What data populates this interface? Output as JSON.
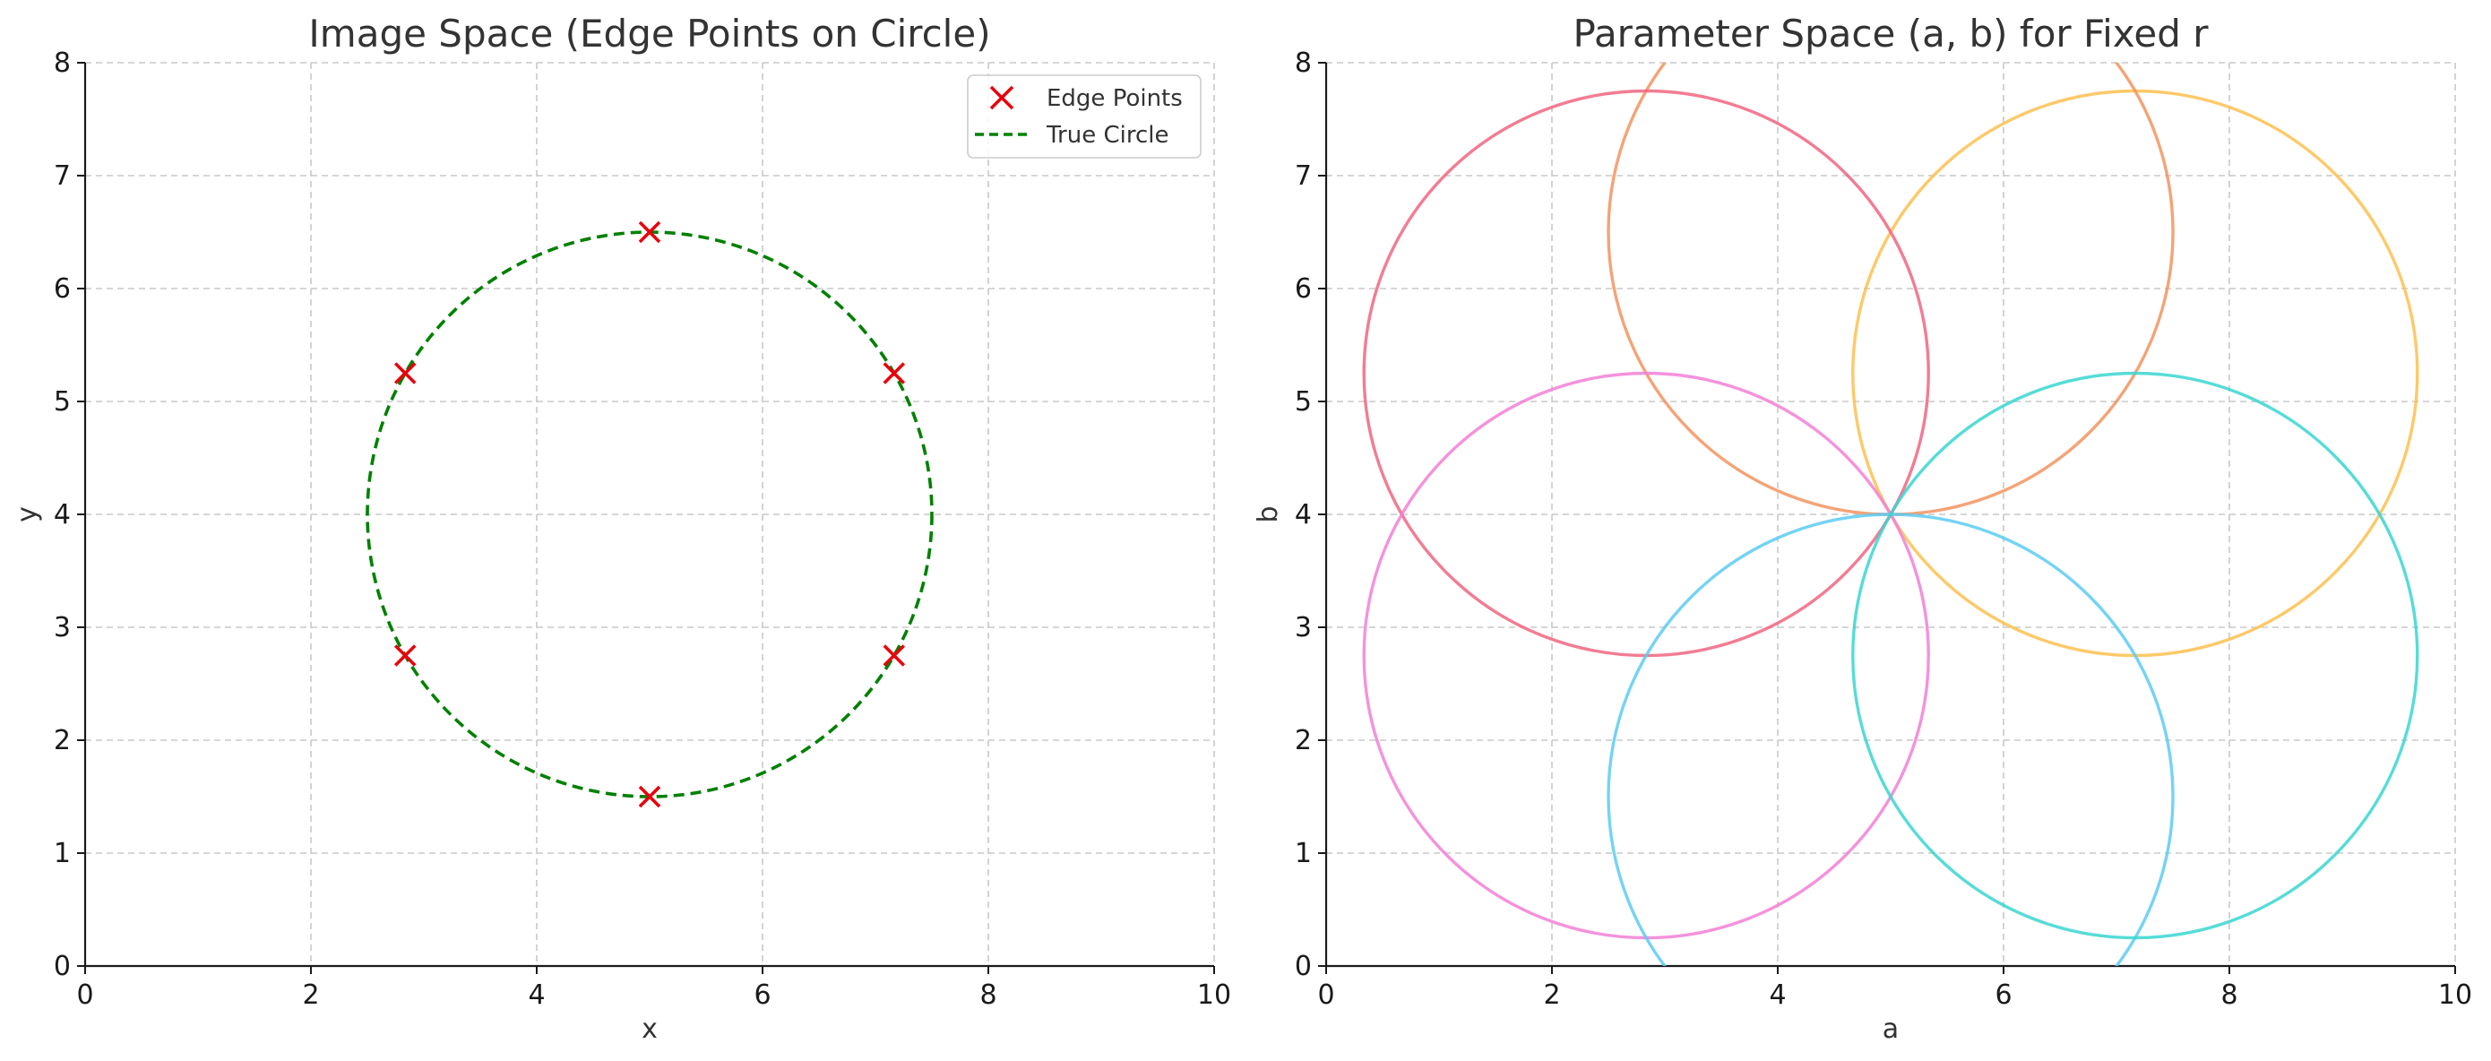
{
  "chart_data": [
    {
      "type": "scatter",
      "title": "Image Space (Edge Points on Circle)",
      "xlabel": "x",
      "ylabel": "y",
      "xlim": [
        0,
        10
      ],
      "ylim": [
        0,
        8
      ],
      "xticks": [
        "0",
        "2",
        "4",
        "6",
        "8",
        "10"
      ],
      "yticks": [
        "0",
        "1",
        "2",
        "3",
        "4",
        "5",
        "6",
        "7",
        "8"
      ],
      "grid": true,
      "legend_position": "top-right",
      "legend": [
        {
          "label": "Edge Points",
          "style": "x-marker",
          "color": "#e8000b"
        },
        {
          "label": "True Circle",
          "style": "dashed-line",
          "color": "#008000"
        }
      ],
      "points": {
        "name": "Edge Points",
        "color": "#e8000b",
        "x": [
          7.165,
          5.0,
          2.835,
          2.835,
          5.0,
          7.165
        ],
        "y": [
          5.25,
          6.5,
          5.25,
          2.75,
          1.5,
          2.75
        ]
      },
      "circle": {
        "name": "True Circle",
        "center": [
          5,
          4
        ],
        "radius": 2.5,
        "color": "#008000"
      }
    },
    {
      "type": "line",
      "title": "Parameter Space (a, b) for Fixed r",
      "xlabel": "a",
      "ylabel": "b",
      "xlim": [
        0,
        10
      ],
      "ylim": [
        0,
        8
      ],
      "xticks": [
        "0",
        "2",
        "4",
        "6",
        "8",
        "10"
      ],
      "yticks": [
        "0",
        "1",
        "2",
        "3",
        "4",
        "5",
        "6",
        "7",
        "8"
      ],
      "grid": true,
      "radius": 2.5,
      "circles": [
        {
          "center": [
            7.165,
            5.25
          ],
          "color": "#fdbf4f"
        },
        {
          "center": [
            5.0,
            6.5
          ],
          "color": "#f2935f"
        },
        {
          "center": [
            2.835,
            5.25
          ],
          "color": "#f06580"
        },
        {
          "center": [
            2.835,
            2.75
          ],
          "color": "#f27fd6"
        },
        {
          "center": [
            5.0,
            1.5
          ],
          "color": "#5ccbf2"
        },
        {
          "center": [
            7.165,
            2.75
          ],
          "color": "#38d6d0"
        }
      ]
    }
  ]
}
